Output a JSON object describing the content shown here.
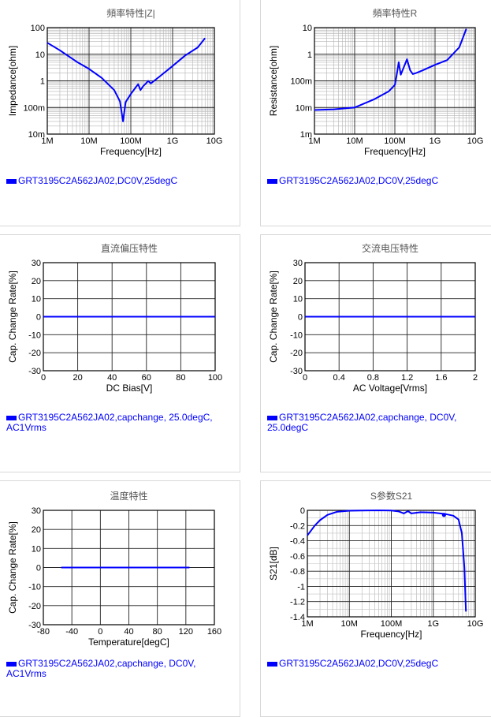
{
  "chart_data": [
    {
      "type": "line",
      "title": "頻率特性|Z|",
      "xlabel": "Frequency[Hz]",
      "ylabel": "Impedance[ohm]",
      "xscale": "log",
      "yscale": "log",
      "xlim": [
        1000000,
        10000000000
      ],
      "ylim": [
        0.01,
        100
      ],
      "x_ticks": [
        1000000,
        10000000,
        100000000,
        1000000000,
        10000000000
      ],
      "x_tick_labels": [
        "1M",
        "10M",
        "100M",
        "1G",
        "10G"
      ],
      "y_ticks": [
        0.01,
        0.1,
        1,
        10,
        100
      ],
      "y_tick_labels": [
        "10m",
        "100m",
        "1",
        "10",
        "100"
      ],
      "grid": true,
      "series": [
        {
          "name": "GRT3195C2A562JA02,DC0V,25degC",
          "color": "#0000ff",
          "x": [
            1000000,
            2000000,
            5000000,
            10000000,
            20000000,
            40000000,
            55000000,
            65000000,
            75000000,
            100000000,
            130000000,
            150000000,
            170000000,
            200000000,
            230000000,
            260000000,
            300000000,
            500000000,
            1000000000,
            2000000000,
            4000000000,
            6000000000
          ],
          "y": [
            27,
            14,
            5.3,
            2.8,
            1.3,
            0.45,
            0.17,
            0.03,
            0.16,
            0.32,
            0.56,
            0.75,
            0.45,
            0.65,
            0.8,
            1.0,
            0.8,
            1.5,
            3.6,
            9,
            18,
            40
          ]
        }
      ]
    },
    {
      "type": "line",
      "title": "頻率特性R",
      "xlabel": "Frequency[Hz]",
      "ylabel": "Resistance[ohm]",
      "xscale": "log",
      "yscale": "log",
      "xlim": [
        1000000,
        10000000000
      ],
      "ylim": [
        0.001,
        10
      ],
      "x_ticks": [
        1000000,
        10000000,
        100000000,
        1000000000,
        10000000000
      ],
      "x_tick_labels": [
        "1M",
        "10M",
        "100M",
        "1G",
        "10G"
      ],
      "y_ticks": [
        0.001,
        0.01,
        0.1,
        1,
        10
      ],
      "y_tick_labels": [
        "1m",
        "10m",
        "100m",
        "1",
        "10"
      ],
      "grid": true,
      "series": [
        {
          "name": "GRT3195C2A562JA02,DC0V,25degC",
          "color": "#0000ff",
          "x": [
            1000000,
            3000000,
            10000000,
            30000000,
            70000000,
            100000000,
            110000000,
            125000000,
            140000000,
            170000000,
            200000000,
            240000000,
            280000000,
            350000000,
            500000000,
            1000000000,
            2000000000,
            4000000000,
            6000000000
          ],
          "y": [
            0.008,
            0.0085,
            0.01,
            0.02,
            0.04,
            0.07,
            0.15,
            0.5,
            0.17,
            0.35,
            0.65,
            0.25,
            0.18,
            0.2,
            0.25,
            0.4,
            0.6,
            1.8,
            9
          ]
        }
      ]
    },
    {
      "type": "line",
      "title": "直流偏压特性",
      "xlabel": "DC Bias[V]",
      "ylabel": "Cap. Change Rate[%]",
      "xlim": [
        0,
        100
      ],
      "ylim": [
        -30,
        30
      ],
      "x_ticks": [
        0,
        20,
        40,
        60,
        80,
        100
      ],
      "y_ticks": [
        -30,
        -20,
        -10,
        0,
        10,
        20,
        30
      ],
      "grid": true,
      "series": [
        {
          "name": "GRT3195C2A562JA02,capchange, 25.0degC, AC1Vrms",
          "color": "#0000ff",
          "x": [
            0,
            100
          ],
          "y": [
            0,
            0
          ]
        }
      ]
    },
    {
      "type": "line",
      "title": "交流电压特性",
      "xlabel": "AC Voltage[Vrms]",
      "ylabel": "Cap. Change Rate[%]",
      "xlim": [
        0,
        2
      ],
      "ylim": [
        -30,
        30
      ],
      "x_ticks": [
        0,
        0.4,
        0.8,
        1.2,
        1.6,
        2
      ],
      "y_ticks": [
        -30,
        -20,
        -10,
        0,
        10,
        20,
        30
      ],
      "grid": true,
      "series": [
        {
          "name": "GRT3195C2A562JA02,capchange, DC0V, 25.0degC",
          "color": "#0000ff",
          "x": [
            0,
            2
          ],
          "y": [
            0,
            0
          ]
        }
      ]
    },
    {
      "type": "line",
      "title": "温度特性",
      "xlabel": "Temperature[degC]",
      "ylabel": "Cap. Change Rate[%]",
      "xlim": [
        -80,
        160
      ],
      "ylim": [
        -30,
        30
      ],
      "x_ticks": [
        -80,
        -40,
        0,
        40,
        80,
        120,
        160
      ],
      "y_ticks": [
        -30,
        -20,
        -10,
        0,
        10,
        20,
        30
      ],
      "grid": true,
      "series": [
        {
          "name": "GRT3195C2A562JA02,capchange, DC0V, AC1Vrms",
          "color": "#0000ff",
          "x": [
            -55,
            125
          ],
          "y": [
            0,
            0
          ]
        }
      ]
    },
    {
      "type": "line",
      "title": "S参数S21",
      "xlabel": "Frequency[Hz]",
      "ylabel": "S21[dB]",
      "xscale": "log",
      "xlim": [
        1000000,
        10000000000
      ],
      "ylim": [
        -1.4,
        0
      ],
      "x_ticks": [
        1000000,
        10000000,
        100000000,
        1000000000,
        10000000000
      ],
      "x_tick_labels": [
        "1M",
        "10M",
        "100M",
        "1G",
        "10G"
      ],
      "y_ticks": [
        -1.4,
        -1.2,
        -1,
        -0.8,
        -0.6,
        -0.4,
        -0.2,
        0
      ],
      "y_tick_labels": [
        "-1.4",
        "-1.2",
        "-1",
        "-0.8",
        "-0.6",
        "-0.4",
        "-0.2",
        "0"
      ],
      "grid": true,
      "series": [
        {
          "name": "GRT3195C2A562JA02,DC0V,25degC",
          "color": "#0000ff",
          "x": [
            1000000,
            1500000,
            2000000,
            3000000,
            5000000,
            10000000,
            20000000,
            50000000,
            100000000,
            150000000,
            200000000,
            250000000,
            300000000,
            500000000,
            1000000000,
            2000000000,
            3000000000,
            4000000000,
            4800000000,
            5500000000,
            6000000000
          ],
          "y": [
            -0.33,
            -0.2,
            -0.13,
            -0.06,
            -0.02,
            -0.005,
            -0.002,
            0,
            -0.003,
            -0.015,
            -0.04,
            -0.01,
            -0.04,
            -0.025,
            -0.03,
            -0.05,
            -0.07,
            -0.12,
            -0.3,
            -0.75,
            -1.33
          ]
        }
      ]
    }
  ]
}
